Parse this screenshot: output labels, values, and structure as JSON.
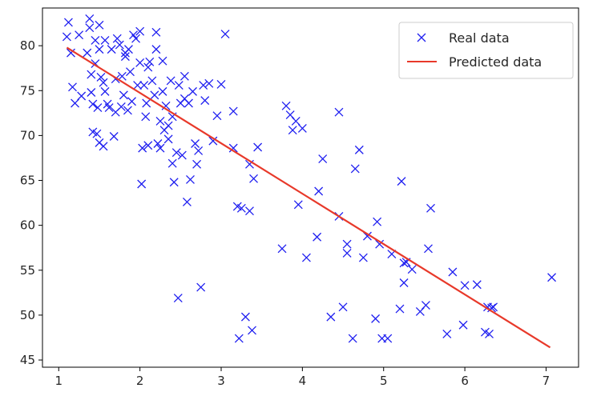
{
  "chart_data": {
    "type": "scatter",
    "xlim": [
      0.8,
      7.4
    ],
    "ylim": [
      44.2,
      84.2
    ],
    "x_ticks": [
      1,
      2,
      3,
      4,
      5,
      6,
      7
    ],
    "y_ticks": [
      45,
      50,
      55,
      60,
      65,
      70,
      75,
      80
    ],
    "grid": false,
    "legend_position": "top-right",
    "colors": {
      "real": "#1f1ff0",
      "predicted": "#e8392a",
      "axis": "#000000"
    },
    "series": [
      {
        "name": "Real data",
        "kind": "scatter",
        "marker": "x",
        "points": [
          [
            1.1,
            81.0
          ],
          [
            1.12,
            82.6
          ],
          [
            1.15,
            79.2
          ],
          [
            1.17,
            75.4
          ],
          [
            1.2,
            73.6
          ],
          [
            1.25,
            81.2
          ],
          [
            1.28,
            74.4
          ],
          [
            1.35,
            79.2
          ],
          [
            1.38,
            83.0
          ],
          [
            1.38,
            82.0
          ],
          [
            1.4,
            76.8
          ],
          [
            1.4,
            74.8
          ],
          [
            1.42,
            73.5
          ],
          [
            1.42,
            70.4
          ],
          [
            1.45,
            80.6
          ],
          [
            1.45,
            78.0
          ],
          [
            1.47,
            70.2
          ],
          [
            1.48,
            73.1
          ],
          [
            1.5,
            69.2
          ],
          [
            1.5,
            82.3
          ],
          [
            1.5,
            79.6
          ],
          [
            1.52,
            76.5
          ],
          [
            1.55,
            75.9
          ],
          [
            1.55,
            68.8
          ],
          [
            1.57,
            80.6
          ],
          [
            1.57,
            74.9
          ],
          [
            1.6,
            73.5
          ],
          [
            1.62,
            73.1
          ],
          [
            1.65,
            79.6
          ],
          [
            1.68,
            69.9
          ],
          [
            1.7,
            76.3
          ],
          [
            1.7,
            72.6
          ],
          [
            1.72,
            80.8
          ],
          [
            1.75,
            80.1
          ],
          [
            1.77,
            73.2
          ],
          [
            1.78,
            76.6
          ],
          [
            1.8,
            74.5
          ],
          [
            1.82,
            79.2
          ],
          [
            1.82,
            78.8
          ],
          [
            1.85,
            72.8
          ],
          [
            1.86,
            79.6
          ],
          [
            1.88,
            77.1
          ],
          [
            1.9,
            73.8
          ],
          [
            1.92,
            81.2
          ],
          [
            1.95,
            80.8
          ],
          [
            1.97,
            75.6
          ],
          [
            2.0,
            81.6
          ],
          [
            2.0,
            78.1
          ],
          [
            2.02,
            64.6
          ],
          [
            2.03,
            68.6
          ],
          [
            2.05,
            75.6
          ],
          [
            2.07,
            72.1
          ],
          [
            2.08,
            73.6
          ],
          [
            2.1,
            68.9
          ],
          [
            2.1,
            77.6
          ],
          [
            2.12,
            78.2
          ],
          [
            2.15,
            76.1
          ],
          [
            2.18,
            74.5
          ],
          [
            2.2,
            81.5
          ],
          [
            2.2,
            79.6
          ],
          [
            2.22,
            69.1
          ],
          [
            2.25,
            71.6
          ],
          [
            2.25,
            68.6
          ],
          [
            2.28,
            78.3
          ],
          [
            2.28,
            74.9
          ],
          [
            2.3,
            70.6
          ],
          [
            2.32,
            73.3
          ],
          [
            2.35,
            71.1
          ],
          [
            2.35,
            69.6
          ],
          [
            2.38,
            76.1
          ],
          [
            2.4,
            72.1
          ],
          [
            2.4,
            66.9
          ],
          [
            2.42,
            64.8
          ],
          [
            2.45,
            68.1
          ],
          [
            2.47,
            51.9
          ],
          [
            2.48,
            75.6
          ],
          [
            2.5,
            73.6
          ],
          [
            2.52,
            67.8
          ],
          [
            2.55,
            74.1
          ],
          [
            2.55,
            76.6
          ],
          [
            2.58,
            62.6
          ],
          [
            2.6,
            73.6
          ],
          [
            2.62,
            65.1
          ],
          [
            2.65,
            74.9
          ],
          [
            2.68,
            69.1
          ],
          [
            2.7,
            66.8
          ],
          [
            2.72,
            68.3
          ],
          [
            2.75,
            53.1
          ],
          [
            2.78,
            75.6
          ],
          [
            2.8,
            73.9
          ],
          [
            2.85,
            75.8
          ],
          [
            2.9,
            69.4
          ],
          [
            2.95,
            72.2
          ],
          [
            3.0,
            75.7
          ],
          [
            3.05,
            81.3
          ],
          [
            3.15,
            68.6
          ],
          [
            3.15,
            72.7
          ],
          [
            3.2,
            62.1
          ],
          [
            3.22,
            47.4
          ],
          [
            3.25,
            61.9
          ],
          [
            3.3,
            49.8
          ],
          [
            3.35,
            66.8
          ],
          [
            3.35,
            61.6
          ],
          [
            3.38,
            48.3
          ],
          [
            3.4,
            65.2
          ],
          [
            3.45,
            68.7
          ],
          [
            3.75,
            57.4
          ],
          [
            3.8,
            73.3
          ],
          [
            3.85,
            72.3
          ],
          [
            3.88,
            70.6
          ],
          [
            3.92,
            71.6
          ],
          [
            3.95,
            62.3
          ],
          [
            4.0,
            70.8
          ],
          [
            4.05,
            56.4
          ],
          [
            4.18,
            58.7
          ],
          [
            4.2,
            63.8
          ],
          [
            4.25,
            67.4
          ],
          [
            4.35,
            49.8
          ],
          [
            4.45,
            61.0
          ],
          [
            4.45,
            72.6
          ],
          [
            4.5,
            50.9
          ],
          [
            4.55,
            57.9
          ],
          [
            4.55,
            56.9
          ],
          [
            4.62,
            47.4
          ],
          [
            4.65,
            66.3
          ],
          [
            4.7,
            68.4
          ],
          [
            4.75,
            56.4
          ],
          [
            4.8,
            58.8
          ],
          [
            4.9,
            49.6
          ],
          [
            4.92,
            60.4
          ],
          [
            4.95,
            57.9
          ],
          [
            4.98,
            47.4
          ],
          [
            5.05,
            47.4
          ],
          [
            5.1,
            56.8
          ],
          [
            5.2,
            50.7
          ],
          [
            5.22,
            64.9
          ],
          [
            5.25,
            55.8
          ],
          [
            5.25,
            53.6
          ],
          [
            5.28,
            55.9
          ],
          [
            5.35,
            55.1
          ],
          [
            5.45,
            50.4
          ],
          [
            5.52,
            51.1
          ],
          [
            5.55,
            57.4
          ],
          [
            5.58,
            61.9
          ],
          [
            5.78,
            47.9
          ],
          [
            5.85,
            54.8
          ],
          [
            5.98,
            48.9
          ],
          [
            6.0,
            53.3
          ],
          [
            6.15,
            53.4
          ],
          [
            6.25,
            48.1
          ],
          [
            6.28,
            50.9
          ],
          [
            6.3,
            47.9
          ],
          [
            6.33,
            50.8
          ],
          [
            6.35,
            50.9
          ],
          [
            7.07,
            54.2
          ]
        ]
      },
      {
        "name": "Predicted data",
        "kind": "line",
        "points": [
          [
            1.1,
            79.8
          ],
          [
            7.05,
            46.4
          ]
        ]
      }
    ]
  }
}
